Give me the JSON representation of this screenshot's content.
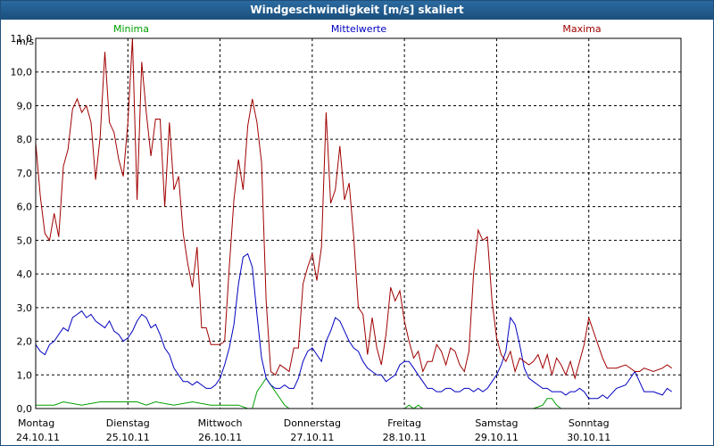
{
  "window": {
    "title": "Windgeschwindigkeit [m/s] skaliert"
  },
  "chart_data": {
    "type": "line",
    "title": "Windgeschwindigkeit [m/s] skaliert",
    "ylabel": "m/s",
    "xlabel": "",
    "ylim": [
      0,
      11
    ],
    "xlim": [
      0,
      7
    ],
    "grid": true,
    "yticks": [
      0,
      1,
      2,
      3,
      4,
      5,
      6,
      7,
      8,
      9,
      10,
      11
    ],
    "ytick_labels": [
      "0,0",
      "1,0",
      "2,0",
      "3,0",
      "4,0",
      "5,0",
      "6,0",
      "7,0",
      "8,0",
      "9,0",
      "10,0",
      "11,0"
    ],
    "days": [
      {
        "name": "Montag",
        "date": "24.10.11"
      },
      {
        "name": "Dienstag",
        "date": "25.10.11"
      },
      {
        "name": "Mittwoch",
        "date": "26.10.11"
      },
      {
        "name": "Donnerstag",
        "date": "27.10.11"
      },
      {
        "name": "Freitag",
        "date": "28.10.11"
      },
      {
        "name": "Samstag",
        "date": "29.10.11"
      },
      {
        "name": "Sonntag",
        "date": "30.10.11"
      }
    ],
    "series": [
      {
        "name": "Minima",
        "color": "#00a000",
        "x": [
          0,
          0.1,
          0.2,
          0.3,
          0.5,
          0.7,
          0.9,
          1.0,
          1.1,
          1.2,
          1.3,
          1.5,
          1.7,
          1.9,
          2.0,
          2.2,
          2.3,
          2.35,
          2.4,
          2.45,
          2.5,
          2.55,
          2.6,
          2.7,
          2.75,
          2.8,
          2.9,
          3.0,
          3.5,
          4.0,
          4.05,
          4.1,
          4.15,
          4.2,
          4.5,
          5.0,
          5.2,
          5.4,
          5.5,
          5.55,
          5.6,
          5.65,
          5.7,
          5.8,
          5.9,
          6.0
        ],
        "values": [
          0.1,
          0.1,
          0.1,
          0.2,
          0.1,
          0.2,
          0.2,
          0.2,
          0.2,
          0.1,
          0.2,
          0.1,
          0.2,
          0.1,
          0.1,
          0.1,
          0,
          0,
          0.5,
          0.7,
          0.9,
          0.7,
          0.5,
          0.1,
          0,
          0,
          0,
          0,
          0,
          0,
          0.1,
          0,
          0.1,
          0,
          0,
          0,
          0,
          0,
          0.1,
          0.3,
          0.3,
          0.1,
          0,
          0,
          0,
          0
        ]
      },
      {
        "name": "Mittelwerte",
        "color": "#0000c0",
        "x": [
          0,
          0.05,
          0.1,
          0.15,
          0.2,
          0.25,
          0.3,
          0.35,
          0.4,
          0.45,
          0.5,
          0.55,
          0.6,
          0.65,
          0.7,
          0.75,
          0.8,
          0.85,
          0.9,
          0.95,
          1.0,
          1.05,
          1.1,
          1.15,
          1.2,
          1.25,
          1.3,
          1.35,
          1.4,
          1.45,
          1.5,
          1.55,
          1.6,
          1.65,
          1.7,
          1.75,
          1.8,
          1.85,
          1.9,
          1.95,
          2.0,
          2.05,
          2.1,
          2.15,
          2.2,
          2.25,
          2.3,
          2.35,
          2.4,
          2.45,
          2.5,
          2.55,
          2.6,
          2.65,
          2.7,
          2.75,
          2.8,
          2.85,
          2.9,
          2.95,
          3.0,
          3.05,
          3.1,
          3.15,
          3.2,
          3.25,
          3.3,
          3.35,
          3.4,
          3.45,
          3.5,
          3.55,
          3.6,
          3.65,
          3.7,
          3.75,
          3.8,
          3.85,
          3.9,
          3.95,
          4.0,
          4.05,
          4.1,
          4.15,
          4.2,
          4.25,
          4.3,
          4.35,
          4.4,
          4.45,
          4.5,
          4.55,
          4.6,
          4.65,
          4.7,
          4.75,
          4.8,
          4.85,
          4.9,
          4.95,
          5.0,
          5.05,
          5.1,
          5.15,
          5.2,
          5.25,
          5.3,
          5.35,
          5.4,
          5.45,
          5.5,
          5.55,
          5.6,
          5.65,
          5.7,
          5.75,
          5.8,
          5.85,
          5.9,
          5.95,
          6.0,
          6.1,
          6.15,
          6.2,
          6.3,
          6.4,
          6.5,
          6.55,
          6.6,
          6.7,
          6.8,
          6.85,
          6.9
        ],
        "values": [
          1.9,
          1.7,
          1.6,
          1.9,
          2.0,
          2.2,
          2.4,
          2.3,
          2.7,
          2.8,
          2.9,
          2.7,
          2.8,
          2.6,
          2.5,
          2.4,
          2.6,
          2.3,
          2.2,
          2.0,
          2.1,
          2.3,
          2.6,
          2.8,
          2.7,
          2.4,
          2.5,
          2.2,
          1.8,
          1.6,
          1.2,
          1.0,
          0.8,
          0.8,
          0.7,
          0.8,
          0.7,
          0.6,
          0.6,
          0.7,
          0.9,
          1.3,
          1.8,
          2.5,
          3.7,
          4.5,
          4.6,
          4.2,
          2.8,
          1.5,
          0.9,
          0.7,
          0.6,
          0.6,
          0.7,
          0.6,
          0.6,
          0.9,
          1.4,
          1.7,
          1.8,
          1.6,
          1.4,
          2.0,
          2.3,
          2.7,
          2.6,
          2.3,
          2.0,
          1.8,
          1.7,
          1.4,
          1.2,
          1.1,
          1.0,
          1.0,
          0.8,
          0.9,
          1.0,
          1.3,
          1.4,
          1.4,
          1.2,
          1.0,
          0.8,
          0.6,
          0.6,
          0.5,
          0.5,
          0.6,
          0.6,
          0.5,
          0.5,
          0.6,
          0.6,
          0.5,
          0.6,
          0.5,
          0.6,
          0.8,
          1.0,
          1.3,
          1.7,
          2.7,
          2.5,
          1.9,
          1.2,
          0.9,
          0.8,
          0.7,
          0.6,
          0.6,
          0.5,
          0.5,
          0.5,
          0.4,
          0.5,
          0.5,
          0.6,
          0.5,
          0.3,
          0.3,
          0.4,
          0.3,
          0.6,
          0.7,
          1.1,
          0.8,
          0.5,
          0.5,
          0.4,
          0.6,
          0.5
        ]
      },
      {
        "name": "Maxima",
        "color": "#a00000",
        "x": [
          0,
          0.05,
          0.1,
          0.15,
          0.2,
          0.25,
          0.3,
          0.35,
          0.4,
          0.45,
          0.5,
          0.55,
          0.6,
          0.65,
          0.7,
          0.75,
          0.8,
          0.85,
          0.9,
          0.95,
          1.0,
          1.05,
          1.1,
          1.15,
          1.2,
          1.25,
          1.3,
          1.35,
          1.4,
          1.45,
          1.5,
          1.55,
          1.6,
          1.65,
          1.7,
          1.75,
          1.8,
          1.85,
          1.9,
          1.95,
          2.0,
          2.05,
          2.1,
          2.15,
          2.2,
          2.25,
          2.3,
          2.35,
          2.4,
          2.45,
          2.5,
          2.55,
          2.6,
          2.65,
          2.7,
          2.75,
          2.8,
          2.85,
          2.9,
          2.95,
          3.0,
          3.05,
          3.1,
          3.15,
          3.2,
          3.25,
          3.3,
          3.35,
          3.4,
          3.45,
          3.5,
          3.55,
          3.6,
          3.65,
          3.7,
          3.75,
          3.8,
          3.85,
          3.9,
          3.95,
          4.0,
          4.05,
          4.1,
          4.15,
          4.2,
          4.25,
          4.3,
          4.35,
          4.4,
          4.45,
          4.5,
          4.55,
          4.6,
          4.65,
          4.7,
          4.75,
          4.8,
          4.85,
          4.9,
          4.95,
          5.0,
          5.05,
          5.1,
          5.15,
          5.2,
          5.25,
          5.3,
          5.35,
          5.4,
          5.45,
          5.5,
          5.55,
          5.6,
          5.65,
          5.7,
          5.75,
          5.8,
          5.85,
          5.9,
          5.95,
          6.0,
          6.1,
          6.15,
          6.2,
          6.3,
          6.4,
          6.5,
          6.55,
          6.6,
          6.7,
          6.8,
          6.85,
          6.9
        ],
        "values": [
          7.9,
          6.3,
          5.2,
          5.0,
          5.8,
          5.1,
          7.2,
          7.7,
          8.9,
          9.2,
          8.8,
          9.0,
          8.5,
          6.8,
          8.1,
          10.6,
          8.5,
          8.2,
          7.4,
          6.9,
          8.5,
          11.0,
          6.2,
          10.3,
          8.8,
          7.5,
          8.6,
          8.6,
          6.0,
          8.5,
          6.5,
          6.9,
          5.2,
          4.3,
          3.6,
          4.8,
          2.4,
          2.4,
          1.9,
          1.9,
          1.9,
          2.0,
          4.2,
          6.2,
          7.4,
          6.5,
          8.4,
          9.2,
          8.5,
          7.3,
          3.2,
          1.1,
          1.0,
          1.3,
          1.2,
          1.1,
          1.8,
          1.8,
          3.7,
          4.2,
          4.6,
          3.8,
          4.8,
          8.8,
          6.1,
          6.5,
          7.8,
          6.2,
          6.7,
          5.1,
          3.0,
          2.8,
          1.6,
          2.7,
          1.8,
          1.3,
          2.2,
          3.6,
          3.2,
          3.5,
          2.6,
          2.0,
          1.5,
          1.7,
          1.1,
          1.4,
          1.4,
          1.9,
          1.7,
          1.3,
          1.8,
          1.7,
          1.3,
          1.1,
          1.7,
          4.0,
          5.3,
          5.0,
          5.1,
          3.2,
          2.1,
          1.6,
          1.4,
          1.7,
          1.1,
          1.5,
          1.4,
          1.3,
          1.4,
          1.6,
          1.2,
          1.6,
          1.0,
          1.5,
          1.3,
          1.0,
          1.4,
          0.9,
          1.4,
          1.9,
          2.7,
          1.9,
          1.5,
          1.2,
          1.2,
          1.3,
          1.1,
          1.1,
          1.2,
          1.1,
          1.2,
          1.3,
          1.2
        ]
      }
    ]
  }
}
